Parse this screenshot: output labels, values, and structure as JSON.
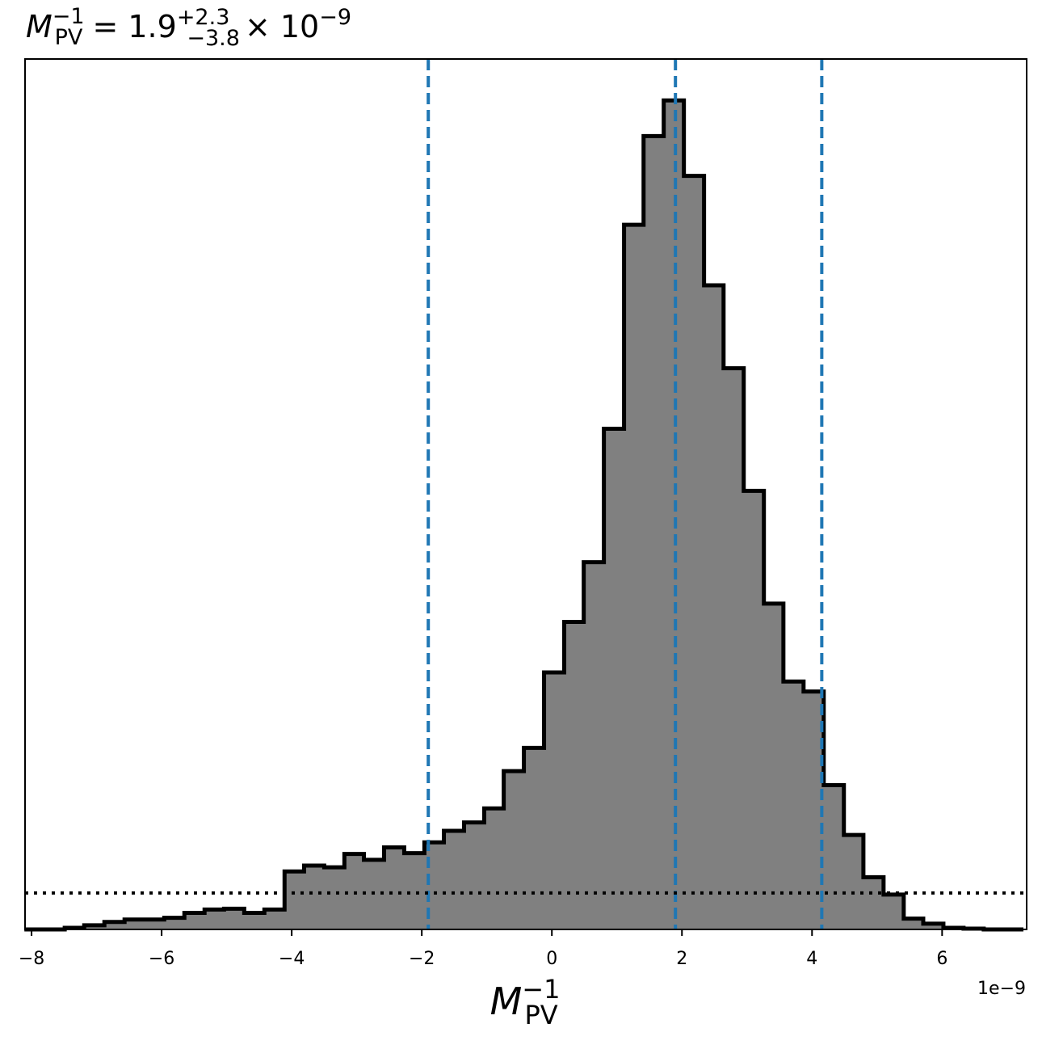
{
  "chart_data": {
    "type": "histogram",
    "title": {
      "symbol": "M",
      "subscript": "PV",
      "superscript": "−1",
      "equals": " = 1.9",
      "upper_err": "+2.3",
      "lower_err": "−3.8",
      "times": "× 10",
      "exponent": "−9"
    },
    "xlabel": {
      "symbol": "M",
      "subscript": "PV",
      "superscript": "−1"
    },
    "x_offset_text": "1e−9",
    "x_scale_factor": 1e-09,
    "xlim": [
      -8.1,
      7.3
    ],
    "ylim": [
      0,
      1.05
    ],
    "x_ticks": [
      {
        "value": -8,
        "label": "−8"
      },
      {
        "value": -6,
        "label": "−6"
      },
      {
        "value": -4,
        "label": "−4"
      },
      {
        "value": -2,
        "label": "−2"
      },
      {
        "value": 0,
        "label": "0"
      },
      {
        "value": 2,
        "label": "2"
      },
      {
        "value": 4,
        "label": "4"
      },
      {
        "value": 6,
        "label": "6"
      }
    ],
    "y_ticks_shown": false,
    "bin_edges": [
      -8.11,
      -7.8,
      -7.49,
      -7.19,
      -6.88,
      -6.57,
      -6.26,
      -5.96,
      -5.65,
      -5.34,
      -5.04,
      -4.73,
      -4.42,
      -4.11,
      -3.81,
      -3.5,
      -3.19,
      -2.89,
      -2.58,
      -2.27,
      -1.96,
      -1.66,
      -1.35,
      -1.04,
      -0.74,
      -0.43,
      -0.12,
      0.19,
      0.49,
      0.8,
      1.11,
      1.41,
      1.72,
      2.03,
      2.34,
      2.64,
      2.95,
      3.26,
      3.56,
      3.87,
      4.18,
      4.49,
      4.79,
      5.1,
      5.41,
      5.71,
      6.02,
      6.33,
      6.64,
      6.94,
      7.25
    ],
    "counts": [
      0.0,
      0.0,
      0.002,
      0.005,
      0.009,
      0.012,
      0.012,
      0.014,
      0.02,
      0.024,
      0.025,
      0.02,
      0.024,
      0.07,
      0.077,
      0.075,
      0.091,
      0.084,
      0.099,
      0.092,
      0.105,
      0.119,
      0.129,
      0.146,
      0.191,
      0.219,
      0.31,
      0.371,
      0.443,
      0.604,
      0.85,
      0.957,
      1.0,
      0.909,
      0.777,
      0.677,
      0.529,
      0.393,
      0.299,
      0.287,
      0.174,
      0.114,
      0.063,
      0.042,
      0.013,
      0.007,
      0.002,
      0.001,
      0.0,
      0.0
    ],
    "fill_color": "#808080",
    "edge_color": "#000000",
    "vlines": {
      "x": [
        -1.9,
        1.9,
        4.15
      ],
      "color": "#1f77b4",
      "style": "dashed"
    },
    "hline": {
      "y": 0.044,
      "color": "#000000",
      "style": "dotted"
    },
    "grid": false
  }
}
